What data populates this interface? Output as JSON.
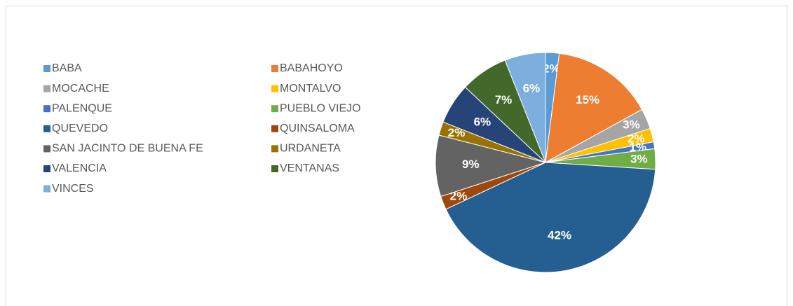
{
  "chart_data": {
    "type": "pie",
    "categories": [
      "BABA",
      "BABAHOYO",
      "MOCACHE",
      "MONTALVO",
      "PALENQUE",
      "PUEBLO VIEJO",
      "QUEVEDO",
      "QUINSALOMA",
      "SAN JACINTO DE BUENA FE",
      "URDANETA",
      "VALENCIA",
      "VENTANAS",
      "VINCES"
    ],
    "values": [
      2,
      15,
      3,
      2,
      1,
      3,
      42,
      2,
      9,
      2,
      6,
      7,
      6
    ],
    "value_labels": [
      "2%",
      "15%",
      "3%",
      "2%",
      "1%",
      "3%",
      "42%",
      "2%",
      "9%",
      "2%",
      "6%",
      "7%",
      "6%"
    ],
    "colors": [
      "#5b9bd5",
      "#ed7d31",
      "#a5a5a5",
      "#ffc000",
      "#4472c4",
      "#70ad47",
      "#255e91",
      "#9e480e",
      "#636363",
      "#997300",
      "#264478",
      "#43682b",
      "#7cafdd"
    ],
    "legend": "left"
  }
}
